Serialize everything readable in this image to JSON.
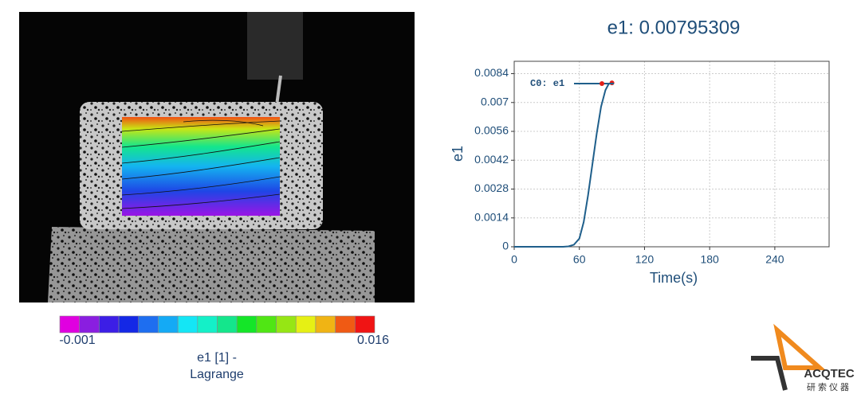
{
  "colorbar": {
    "colors": [
      "#e000e0",
      "#8a1ee0",
      "#3c1ee6",
      "#1428e6",
      "#1e6ef0",
      "#14aaf5",
      "#14e6f5",
      "#14f0c8",
      "#14e68c",
      "#14e628",
      "#50e614",
      "#96e614",
      "#e6f014",
      "#f0b414",
      "#f05a14",
      "#f01414"
    ],
    "min": -0.001,
    "max": 0.016,
    "title_lines": [
      "e1 [1] -",
      "Lagrange"
    ]
  },
  "chart_data": {
    "type": "line",
    "title": "e1: 0.00795309",
    "x_label": "Time(s)",
    "y_label": "e1",
    "x": [
      0,
      45,
      50,
      55,
      60,
      64,
      68,
      72,
      76,
      80,
      84,
      87,
      90
    ],
    "series": [
      {
        "name": "C0: e1",
        "color": "#1f5f8b",
        "marker_color": "#e0201a",
        "values": [
          0,
          0,
          2e-05,
          0.0001,
          0.0004,
          0.0012,
          0.0025,
          0.004,
          0.0055,
          0.0068,
          0.0076,
          0.0079,
          0.00795
        ]
      }
    ],
    "xlim": [
      0,
      290
    ],
    "xticks": [
      0,
      60,
      120,
      180,
      240
    ],
    "ylim": [
      0,
      0.009
    ],
    "yticks": [
      0,
      0.0014,
      0.0028,
      0.0042,
      0.0056,
      0.007,
      0.0084
    ],
    "grid": true,
    "legend": "upper-left"
  },
  "logo": {
    "brand": "ACQTEC",
    "subtitle": "研索仪器"
  }
}
